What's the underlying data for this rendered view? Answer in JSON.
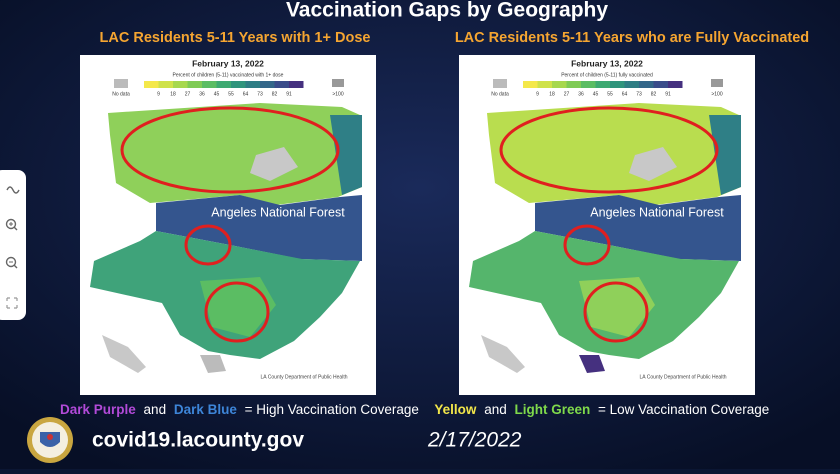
{
  "title": "Vaccination Gaps by Geography",
  "maps": [
    {
      "heading": "LAC Residents 5-11 Years with 1+ Dose",
      "date": "February 13, 2022",
      "legend_title": "Percent of children (5-11) vaccinated with 1+ dose",
      "no_data": "No data",
      "legend_ticks": [
        9,
        18,
        27,
        36,
        45,
        55,
        64,
        73,
        82,
        91
      ],
      "legend_max": ">100",
      "forest_label": "Angeles National Forest",
      "credit": "LA County Department of Public Health"
    },
    {
      "heading": "LAC Residents 5-11 Years who are Fully Vaccinated",
      "date": "February 13, 2022",
      "legend_title": "Percent of children (5-11) fully vaccinated",
      "no_data": "No data",
      "legend_ticks": [
        9,
        18,
        27,
        36,
        45,
        55,
        64,
        73,
        82,
        91
      ],
      "legend_max": ">100",
      "forest_label": "Angeles National Forest",
      "credit": "LA County Department of Public Health"
    }
  ],
  "footer": {
    "legend": [
      "Dark Purple",
      "and",
      "Dark Blue",
      "= High Vaccination Coverage",
      "Yellow",
      "and",
      "Light Green",
      "= Low Vaccination Coverage"
    ],
    "url": "covid19.lacounty.gov",
    "date": "2/17/2022"
  }
}
